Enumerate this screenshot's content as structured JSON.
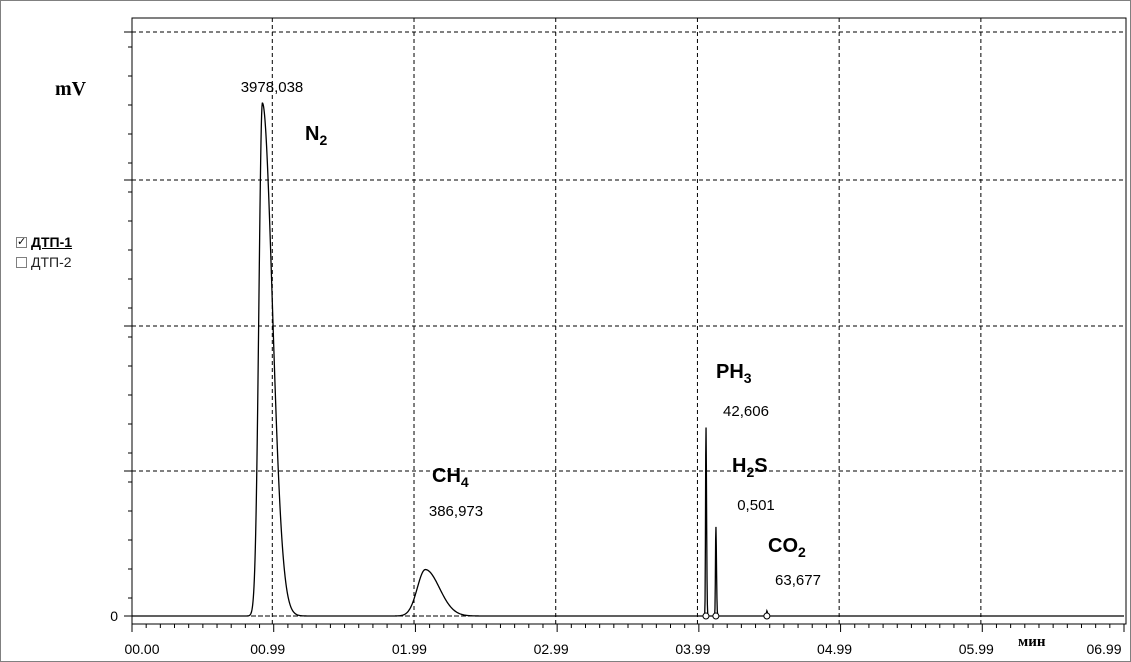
{
  "chart_data": {
    "type": "line",
    "ylabel": "mV",
    "xlabel": "мин",
    "x_ticks": [
      "00.00",
      "00.99",
      "01.99",
      "02.99",
      "03.99",
      "04.99",
      "05.99",
      "06.99"
    ],
    "y_ticks": [
      "0"
    ],
    "grid": true,
    "xlim": [
      0,
      7
    ],
    "legend": [
      {
        "label": "ДТП-1",
        "checked": true
      },
      {
        "label": "ДТП-2",
        "checked": false
      }
    ],
    "peaks": [
      {
        "compound": "N",
        "sub": "2",
        "value": "3978,038",
        "retention_min": 0.92,
        "height_mv": 3978
      },
      {
        "compound": "CH",
        "sub": "4",
        "value": "386,973",
        "retention_min": 2.07,
        "height_mv": 360
      },
      {
        "compound": "PH",
        "sub": "3",
        "value": "42,606",
        "retention_min": 4.05,
        "height_mv": 1480
      },
      {
        "compound": "H",
        "sub": "2",
        "suffix": "S",
        "value": "0,501",
        "retention_min": 4.12,
        "height_mv": 700
      },
      {
        "compound": "CO",
        "sub": "2",
        "value": "63,677",
        "retention_min": 4.48,
        "height_mv": 40
      }
    ],
    "colors": {
      "trace": "#000000",
      "grid": "#000000",
      "background": "#ffffff"
    }
  }
}
